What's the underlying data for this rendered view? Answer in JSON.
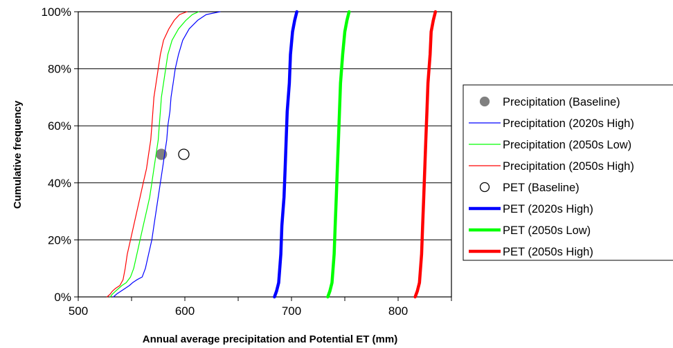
{
  "chart_data": {
    "type": "line",
    "title": "",
    "xlabel": "Annual average precipitation and Potential ET (mm)",
    "ylabel": "Cumulative frequency",
    "xlim": [
      500,
      850
    ],
    "ylim": [
      0,
      100
    ],
    "x_ticks": [
      500,
      600,
      700,
      800
    ],
    "x_tick_labels": [
      "500",
      "600",
      "700",
      "800"
    ],
    "y_ticks": [
      0,
      20,
      40,
      60,
      80,
      100
    ],
    "y_tick_labels": [
      "0%",
      "20%",
      "40%",
      "60%",
      "80%",
      "100%"
    ],
    "grid": "horizontal",
    "legend_position": "right",
    "series": [
      {
        "name": "Precipitation (Baseline)",
        "kind": "point",
        "marker": "filled-circle",
        "color": "#808080",
        "points": [
          [
            578,
            50
          ]
        ]
      },
      {
        "name": "Precipitation (2020s High)",
        "kind": "line",
        "color": "#0000ff",
        "width": "thin",
        "points": [
          [
            533,
            0
          ],
          [
            536,
            1
          ],
          [
            540,
            2
          ],
          [
            544,
            3
          ],
          [
            548,
            4
          ],
          [
            551,
            5
          ],
          [
            555,
            6
          ],
          [
            560,
            7
          ],
          [
            563,
            10
          ],
          [
            566,
            15
          ],
          [
            569,
            20
          ],
          [
            571,
            25
          ],
          [
            573,
            30
          ],
          [
            575,
            35
          ],
          [
            577,
            40
          ],
          [
            579,
            45
          ],
          [
            581,
            50
          ],
          [
            583,
            55
          ],
          [
            584,
            60
          ],
          [
            586,
            65
          ],
          [
            587,
            70
          ],
          [
            589,
            75
          ],
          [
            591,
            80
          ],
          [
            594,
            85
          ],
          [
            598,
            90
          ],
          [
            604,
            94
          ],
          [
            612,
            97
          ],
          [
            620,
            99
          ],
          [
            633,
            100
          ]
        ]
      },
      {
        "name": "Precipitation (2050s Low)",
        "kind": "line",
        "color": "#00ff00",
        "width": "thin",
        "points": [
          [
            530,
            0
          ],
          [
            532,
            1
          ],
          [
            535,
            2
          ],
          [
            538,
            3
          ],
          [
            541,
            4
          ],
          [
            545,
            5
          ],
          [
            549,
            7
          ],
          [
            552,
            10
          ],
          [
            555,
            15
          ],
          [
            558,
            20
          ],
          [
            561,
            25
          ],
          [
            564,
            30
          ],
          [
            567,
            35
          ],
          [
            569,
            40
          ],
          [
            571,
            45
          ],
          [
            573,
            50
          ],
          [
            575,
            55
          ],
          [
            576,
            60
          ],
          [
            577,
            65
          ],
          [
            578,
            70
          ],
          [
            580,
            75
          ],
          [
            582,
            80
          ],
          [
            584,
            85
          ],
          [
            588,
            90
          ],
          [
            594,
            94
          ],
          [
            601,
            97
          ],
          [
            607,
            99
          ],
          [
            613,
            100
          ]
        ]
      },
      {
        "name": "Precipitation (2050s High)",
        "kind": "line",
        "color": "#ff0000",
        "width": "thin",
        "points": [
          [
            527,
            0
          ],
          [
            530,
            1
          ],
          [
            532,
            2
          ],
          [
            535,
            3
          ],
          [
            539,
            4
          ],
          [
            542,
            6
          ],
          [
            544,
            10
          ],
          [
            546,
            15
          ],
          [
            549,
            20
          ],
          [
            552,
            25
          ],
          [
            555,
            30
          ],
          [
            558,
            35
          ],
          [
            561,
            40
          ],
          [
            564,
            45
          ],
          [
            566,
            50
          ],
          [
            568,
            55
          ],
          [
            569,
            60
          ],
          [
            570,
            65
          ],
          [
            571,
            70
          ],
          [
            573,
            75
          ],
          [
            575,
            80
          ],
          [
            577,
            85
          ],
          [
            580,
            90
          ],
          [
            585,
            94
          ],
          [
            590,
            97
          ],
          [
            595,
            99
          ],
          [
            602,
            100
          ]
        ]
      },
      {
        "name": "PET (Baseline)",
        "kind": "point",
        "marker": "open-circle",
        "color": "#000000",
        "points": [
          [
            599,
            50
          ]
        ]
      },
      {
        "name": "PET (2020s High)",
        "kind": "line",
        "color": "#0000ff",
        "width": "thick",
        "points": [
          [
            684,
            0
          ],
          [
            686,
            2
          ],
          [
            688,
            5
          ],
          [
            690,
            15
          ],
          [
            691,
            25
          ],
          [
            693,
            35
          ],
          [
            694,
            45
          ],
          [
            695,
            55
          ],
          [
            696,
            65
          ],
          [
            698,
            75
          ],
          [
            699,
            85
          ],
          [
            701,
            93
          ],
          [
            703,
            97
          ],
          [
            705,
            100
          ]
        ]
      },
      {
        "name": "PET (2050s Low)",
        "kind": "line",
        "color": "#00ff00",
        "width": "thick",
        "points": [
          [
            734,
            0
          ],
          [
            736,
            2
          ],
          [
            738,
            5
          ],
          [
            740,
            15
          ],
          [
            741,
            25
          ],
          [
            742,
            35
          ],
          [
            743,
            45
          ],
          [
            744,
            55
          ],
          [
            745,
            65
          ],
          [
            746,
            75
          ],
          [
            748,
            85
          ],
          [
            750,
            93
          ],
          [
            752,
            97
          ],
          [
            754,
            100
          ]
        ]
      },
      {
        "name": "PET (2050s High)",
        "kind": "line",
        "color": "#ff0000",
        "width": "thick",
        "points": [
          [
            816,
            0
          ],
          [
            818,
            2
          ],
          [
            820,
            5
          ],
          [
            822,
            15
          ],
          [
            823,
            25
          ],
          [
            824,
            35
          ],
          [
            825,
            45
          ],
          [
            826,
            55
          ],
          [
            827,
            65
          ],
          [
            828,
            75
          ],
          [
            830,
            85
          ],
          [
            831,
            93
          ],
          [
            833,
            97
          ],
          [
            835,
            100
          ]
        ]
      }
    ]
  }
}
